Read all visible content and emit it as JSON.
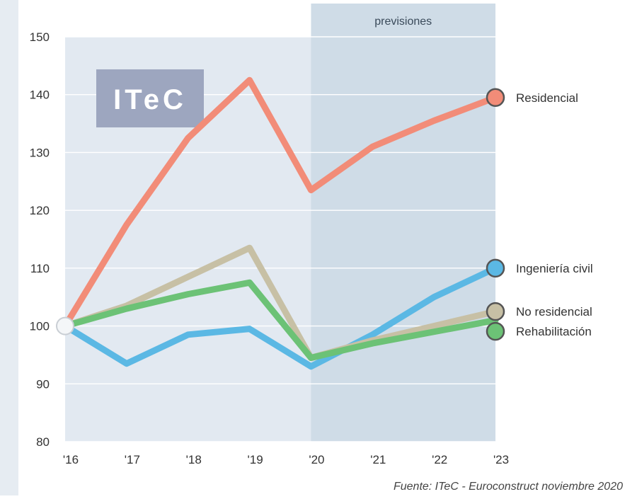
{
  "logo": {
    "text": "ITeC"
  },
  "forecast": {
    "label": "previsiones",
    "from": "'20",
    "to": "'23"
  },
  "source": "Fuente: ITeC - Euroconstruct noviembre 2020",
  "colors": {
    "background_strip": "#e6ecf2",
    "plot_area": "#e2e9f1",
    "forecast_band": "#cfdce7",
    "grid": "#ffffff",
    "logo_box": "#9da6bf"
  },
  "chart_data": {
    "type": "line",
    "title": "",
    "xlabel": "",
    "ylabel": "",
    "categories": [
      "'16",
      "'17",
      "'18",
      "'19",
      "'20",
      "'21",
      "'22",
      "'23"
    ],
    "ylim": [
      80,
      150
    ],
    "yticks": [
      80,
      90,
      100,
      110,
      120,
      130,
      140,
      150
    ],
    "grid": true,
    "series": [
      {
        "name": "Residencial",
        "color": "#f28c78",
        "values": [
          100,
          117.5,
          132.5,
          142.5,
          123.5,
          131,
          135.5,
          139.5
        ]
      },
      {
        "name": "Ingeniería civil",
        "color": "#5bb8e4",
        "values": [
          100,
          93.5,
          98.5,
          99.5,
          93,
          98.5,
          105,
          110
        ]
      },
      {
        "name": "No residencial",
        "color": "#c7c0a5",
        "values": [
          100,
          103.5,
          108.5,
          113.5,
          94.5,
          97.5,
          100,
          102.5
        ]
      },
      {
        "name": "Rehabilitación",
        "color": "#6cc276",
        "values": [
          100,
          103,
          105.5,
          107.5,
          94.5,
          97,
          99,
          101
        ]
      }
    ],
    "legend_placement": "right"
  }
}
